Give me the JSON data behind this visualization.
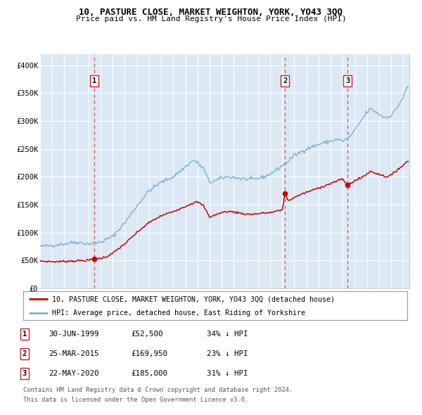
{
  "title1": "10, PASTURE CLOSE, MARKET WEIGHTON, YORK, YO43 3QQ",
  "title2": "Price paid vs. HM Land Registry's House Price Index (HPI)",
  "xmin": 1995.0,
  "xmax": 2025.5,
  "ymin": 0,
  "ymax": 420000,
  "yticks": [
    0,
    50000,
    100000,
    150000,
    200000,
    250000,
    300000,
    350000,
    400000
  ],
  "ytick_labels": [
    "£0",
    "£50K",
    "£100K",
    "£150K",
    "£200K",
    "£250K",
    "£300K",
    "£350K",
    "£400K"
  ],
  "background_color": "#dce9f5",
  "grid_color": "#ffffff",
  "hpi_line_color": "#7ab3d4",
  "price_line_color": "#cc0000",
  "sale_marker_color": "#cc0000",
  "dashed_line_color": "#e05050",
  "sale1_date_num": 1999.497,
  "sale1_price": 52500,
  "sale1_label": "1",
  "sale2_date_num": 2015.228,
  "sale2_price": 169950,
  "sale2_label": "2",
  "sale3_date_num": 2020.388,
  "sale3_price": 185000,
  "sale3_label": "3",
  "footer_line1": "Contains HM Land Registry data © Crown copyright and database right 2024.",
  "footer_line2": "This data is licensed under the Open Government Licence v3.0.",
  "legend_line1": "10, PASTURE CLOSE, MARKET WEIGHTON, YORK, YO43 3QQ (detached house)",
  "legend_line2": "HPI: Average price, detached house, East Riding of Yorkshire",
  "table_rows": [
    {
      "num": "1",
      "date": "30-JUN-1999",
      "price": "£52,500",
      "hpi": "34% ↓ HPI"
    },
    {
      "num": "2",
      "date": "25-MAR-2015",
      "price": "£169,950",
      "hpi": "23% ↓ HPI"
    },
    {
      "num": "3",
      "date": "22-MAY-2020",
      "price": "£185,000",
      "hpi": "31% ↓ HPI"
    }
  ],
  "hpi_anchors": [
    [
      1995.0,
      75000
    ],
    [
      1996.0,
      77000
    ],
    [
      1997.0,
      80000
    ],
    [
      1998.0,
      83000
    ],
    [
      1999.0,
      80000
    ],
    [
      2000.0,
      83000
    ],
    [
      2001.0,
      93000
    ],
    [
      2002.0,
      118000
    ],
    [
      2003.0,
      148000
    ],
    [
      2004.0,
      175000
    ],
    [
      2005.0,
      190000
    ],
    [
      2006.0,
      200000
    ],
    [
      2007.0,
      218000
    ],
    [
      2007.7,
      230000
    ],
    [
      2008.5,
      215000
    ],
    [
      2009.0,
      190000
    ],
    [
      2009.5,
      193000
    ],
    [
      2010.0,
      198000
    ],
    [
      2010.5,
      200000
    ],
    [
      2011.0,
      199000
    ],
    [
      2011.5,
      197000
    ],
    [
      2012.0,
      196000
    ],
    [
      2012.5,
      195000
    ],
    [
      2013.0,
      197000
    ],
    [
      2013.5,
      200000
    ],
    [
      2014.0,
      205000
    ],
    [
      2014.5,
      212000
    ],
    [
      2015.0,
      220000
    ],
    [
      2015.5,
      228000
    ],
    [
      2016.0,
      238000
    ],
    [
      2016.5,
      244000
    ],
    [
      2017.0,
      250000
    ],
    [
      2017.5,
      254000
    ],
    [
      2018.0,
      258000
    ],
    [
      2018.5,
      261000
    ],
    [
      2019.0,
      264000
    ],
    [
      2019.5,
      267000
    ],
    [
      2020.0,
      264000
    ],
    [
      2020.5,
      270000
    ],
    [
      2021.0,
      283000
    ],
    [
      2021.5,
      300000
    ],
    [
      2022.0,
      316000
    ],
    [
      2022.3,
      322000
    ],
    [
      2022.6,
      318000
    ],
    [
      2023.0,
      312000
    ],
    [
      2023.3,
      308000
    ],
    [
      2023.6,
      306000
    ],
    [
      2024.0,
      310000
    ],
    [
      2024.3,
      318000
    ],
    [
      2024.6,
      328000
    ],
    [
      2025.0,
      342000
    ],
    [
      2025.3,
      360000
    ]
  ],
  "price_anchors": [
    [
      1995.0,
      49000
    ],
    [
      1996.0,
      48000
    ],
    [
      1997.0,
      48500
    ],
    [
      1998.0,
      49500
    ],
    [
      1999.0,
      50500
    ],
    [
      1999.497,
      52500
    ],
    [
      2000.0,
      54000
    ],
    [
      2000.5,
      57000
    ],
    [
      2001.0,
      63000
    ],
    [
      2002.0,
      80000
    ],
    [
      2003.0,
      100000
    ],
    [
      2004.0,
      118000
    ],
    [
      2005.0,
      130000
    ],
    [
      2006.0,
      138000
    ],
    [
      2007.0,
      147000
    ],
    [
      2007.5,
      152000
    ],
    [
      2008.0,
      155000
    ],
    [
      2008.5,
      148000
    ],
    [
      2009.0,
      128000
    ],
    [
      2009.5,
      132000
    ],
    [
      2010.0,
      136000
    ],
    [
      2010.5,
      138000
    ],
    [
      2011.0,
      137000
    ],
    [
      2011.5,
      135000
    ],
    [
      2012.0,
      133000
    ],
    [
      2012.5,
      133000
    ],
    [
      2013.0,
      134000
    ],
    [
      2013.5,
      135000
    ],
    [
      2014.0,
      136000
    ],
    [
      2014.5,
      138000
    ],
    [
      2015.0,
      141000
    ],
    [
      2015.228,
      169950
    ],
    [
      2015.5,
      157000
    ],
    [
      2016.0,
      163000
    ],
    [
      2016.5,
      168000
    ],
    [
      2017.0,
      172000
    ],
    [
      2017.5,
      176000
    ],
    [
      2018.0,
      180000
    ],
    [
      2018.5,
      184000
    ],
    [
      2019.0,
      188000
    ],
    [
      2019.5,
      192000
    ],
    [
      2020.0,
      196000
    ],
    [
      2020.388,
      185000
    ],
    [
      2020.5,
      187000
    ],
    [
      2021.0,
      193000
    ],
    [
      2021.5,
      198000
    ],
    [
      2022.0,
      205000
    ],
    [
      2022.3,
      210000
    ],
    [
      2022.6,
      207000
    ],
    [
      2023.0,
      205000
    ],
    [
      2023.3,
      202000
    ],
    [
      2023.6,
      200000
    ],
    [
      2024.0,
      203000
    ],
    [
      2024.3,
      208000
    ],
    [
      2024.6,
      215000
    ],
    [
      2025.0,
      220000
    ],
    [
      2025.3,
      228000
    ]
  ]
}
